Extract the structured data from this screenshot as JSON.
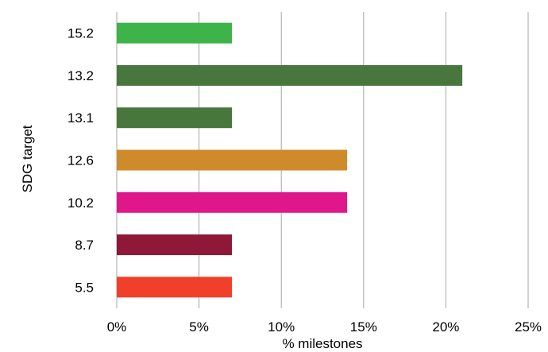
{
  "chart_data": {
    "type": "bar",
    "orientation": "horizontal",
    "title": "",
    "xlabel": "% milestones",
    "ylabel": "SDG target",
    "xlim": [
      0,
      25
    ],
    "x_ticks": [
      0,
      5,
      10,
      15,
      20,
      25
    ],
    "x_tick_labels": [
      "0%",
      "5%",
      "10%",
      "15%",
      "20%",
      "25%"
    ],
    "categories": [
      "15.2",
      "13.2",
      "13.1",
      "12.6",
      "10.2",
      "8.7",
      "5.5"
    ],
    "values": [
      7,
      21,
      7,
      14,
      14,
      7,
      7
    ],
    "colors": [
      "#3db34a",
      "#48773d",
      "#48773d",
      "#cf8b2b",
      "#e0178a",
      "#8f1838",
      "#f0402b"
    ],
    "grid": "vertical",
    "legend": "none"
  }
}
